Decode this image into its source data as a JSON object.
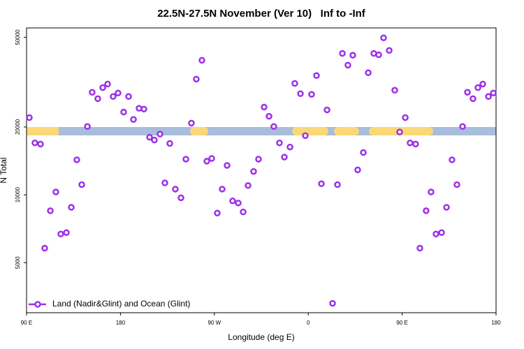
{
  "chart_data": {
    "type": "scatter",
    "title": "22.5N-27.5N November (Ver 10)   Inf to -Inf",
    "xlabel": "Longitude (deg E)",
    "ylabel": "N Total",
    "log_y": true,
    "grid": false,
    "legend_position": "bottom-left",
    "xlim": [
      90,
      540
    ],
    "xticks": [
      {
        "value": 90,
        "label": "90 E"
      },
      {
        "value": 180,
        "label": "180"
      },
      {
        "value": 270,
        "label": "90 W"
      },
      {
        "value": 360,
        "label": "0"
      },
      {
        "value": 450,
        "label": "90 E"
      },
      {
        "value": 540,
        "label": "180"
      }
    ],
    "ylim": [
      3000,
      55000
    ],
    "yticks": [
      5000,
      10000,
      20000,
      50000
    ],
    "x": [
      92.7,
      98,
      103.4,
      107.4,
      112.8,
      118.1,
      122.8,
      128.2,
      132.9,
      138.2,
      142.9,
      148.3,
      152.9,
      158.3,
      163,
      167.7,
      173,
      177.7,
      183.1,
      187.8,
      192.5,
      197.8,
      202.5,
      207.9,
      212.5,
      217.9,
      222.6,
      227.3,
      232.6,
      238,
      242.7,
      248,
      252.7,
      258.1,
      262.8,
      267.5,
      272.8,
      277.5,
      282.2,
      287.5,
      292.9,
      297.6,
      302.3,
      307.6,
      312.3,
      317.7,
      322.4,
      327,
      332.4,
      337.1,
      342.5,
      347.1,
      352.5,
      357.2,
      363.2,
      367.9,
      372.6,
      378,
      383.3,
      388,
      392.7,
      398,
      402.7,
      407.4,
      412.8,
      417.5,
      422.8,
      427.5,
      432.2,
      437.6,
      442.9,
      447.6,
      453,
      457.6,
      462.9,
      467,
      473,
      477.7,
      482.4,
      487.8,
      492.5,
      497.8,
      502.5,
      507.9,
      512.6,
      517.9,
      522.6,
      527.3,
      532.7,
      537.4
    ],
    "series": [
      {
        "name": "Land (Nadir&Glint) and Ocean (Glint)",
        "color": "#9b30e8",
        "values": [
          22000,
          17000,
          16800,
          5800,
          8500,
          10300,
          6700,
          6800,
          8800,
          14300,
          11100,
          20100,
          28500,
          26700,
          29900,
          31000,
          27300,
          28300,
          23300,
          27300,
          21600,
          24200,
          24000,
          18000,
          17500,
          18600,
          11300,
          16900,
          10600,
          9700,
          14400,
          20800,
          32600,
          39500,
          14100,
          14500,
          8300,
          10600,
          13500,
          9400,
          9200,
          8400,
          11000,
          12700,
          14400,
          24500,
          22300,
          20100,
          17000,
          14700,
          16300,
          31200,
          28100,
          18300,
          27900,
          33800,
          11200,
          23800,
          3300,
          11100,
          42400,
          37600,
          41600,
          12900,
          15400,
          34800,
          42400,
          41800,
          49700,
          43700,
          29100,
          19000,
          22000,
          17000,
          16800,
          5800,
          8500,
          10300,
          6700,
          6800,
          8800,
          14300,
          11100,
          20100,
          28500,
          26700,
          29900,
          31000,
          27300,
          28300
        ]
      }
    ]
  }
}
